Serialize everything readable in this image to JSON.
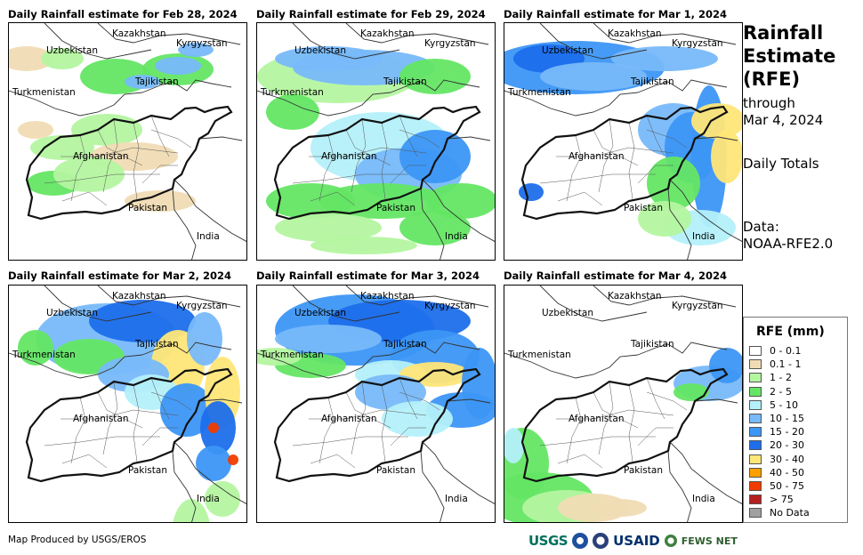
{
  "panels": [
    {
      "title": "Daily Rainfall estimate for Feb 28, 2024"
    },
    {
      "title": "Daily Rainfall estimate for Feb 29, 2024"
    },
    {
      "title": "Daily Rainfall estimate for Mar 1, 2024"
    },
    {
      "title": "Daily Rainfall estimate for Mar 2, 2024"
    },
    {
      "title": "Daily Rainfall estimate for Mar 3, 2024"
    },
    {
      "title": "Daily Rainfall estimate for Mar 4, 2024"
    }
  ],
  "map_labels": {
    "kazakhstan": "Kazakhstan",
    "kyrgyzstan": "Kyrgyzstan",
    "uzbekistan": "Uzbekistan",
    "tajikistan": "Tajikistan",
    "turkmenistan": "Turkmenistan",
    "afghanistan": "Afghanistan",
    "pakistan": "Pakistan",
    "india": "India"
  },
  "side": {
    "title_line1": "Rainfall",
    "title_line2": "Estimate",
    "title_line3": "(RFE)",
    "through_line1": "through",
    "through_line2": "Mar 4, 2024",
    "daily": "Daily Totals",
    "data_line1": "Data:",
    "data_line2": "NOAA-RFE2.0"
  },
  "legend": {
    "title": "RFE (mm)",
    "items": [
      {
        "label": "0 - 0.1",
        "color": "#ffffff"
      },
      {
        "label": "0.1 - 1",
        "color": "#f0dcb4"
      },
      {
        "label": "1 - 2",
        "color": "#b4f5a0"
      },
      {
        "label": "2 - 5",
        "color": "#64e664"
      },
      {
        "label": "5 - 10",
        "color": "#b4f0fa"
      },
      {
        "label": "10 - 15",
        "color": "#78b9fa"
      },
      {
        "label": "15 - 20",
        "color": "#3c96f5"
      },
      {
        "label": "20 - 30",
        "color": "#1e6eeb"
      },
      {
        "label": "30 - 40",
        "color": "#ffe678"
      },
      {
        "label": "40 - 50",
        "color": "#ffa000"
      },
      {
        "label": "50 - 75",
        "color": "#f03c00"
      },
      {
        "label": "> 75",
        "color": "#b41e1e"
      },
      {
        "label": "No Data",
        "color": "#a0a0a0"
      }
    ]
  },
  "footer": "Map Produced by USGS/EROS",
  "logos": {
    "usgs": "USGS",
    "usaid": "USAID",
    "fews": "FEWS NET"
  }
}
